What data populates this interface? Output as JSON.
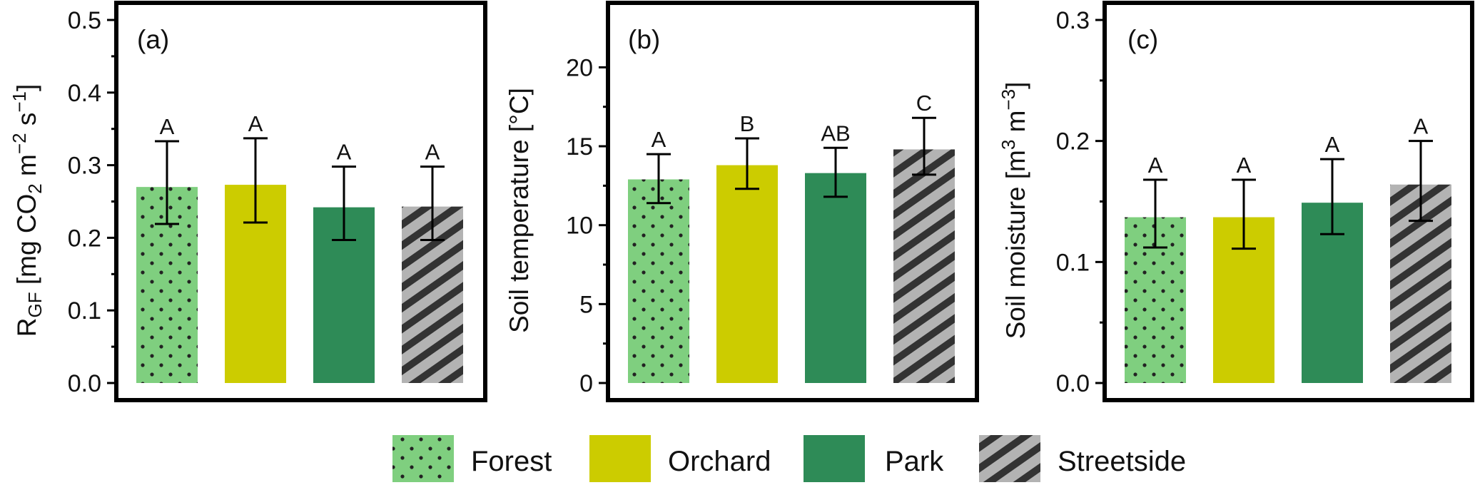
{
  "chart_data": [
    {
      "type": "bar",
      "panel_tag": "(a)",
      "ylabel": {
        "base": "R",
        "sub": "GF",
        "rest_a": " [mg CO",
        "sub2": "2",
        "rest_b": " m",
        "sup1": "−2",
        "rest_c": " s",
        "sup2": "−1",
        "rest_d": "]"
      },
      "ylim": [
        0,
        0.5
      ],
      "yticks": [
        "0.0",
        "0.1",
        "0.2",
        "0.3",
        "0.4",
        "0.5"
      ],
      "categories": [
        "Forest",
        "Orchard",
        "Park",
        "Streetside"
      ],
      "values": [
        0.27,
        0.273,
        0.242,
        0.243
      ],
      "err_low": [
        0.219,
        0.221,
        0.197,
        0.197
      ],
      "err_high": [
        0.333,
        0.337,
        0.298,
        0.298
      ],
      "letters": [
        "A",
        "A",
        "A",
        "A"
      ]
    },
    {
      "type": "bar",
      "panel_tag": "(b)",
      "ylabel": {
        "text": "Soil temperature [°C]"
      },
      "ylim": [
        0,
        23
      ],
      "yticks": [
        "0",
        "5",
        "10",
        "15",
        "20"
      ],
      "categories": [
        "Forest",
        "Orchard",
        "Park",
        "Streetside"
      ],
      "values": [
        12.9,
        13.8,
        13.3,
        14.8
      ],
      "err_low": [
        11.4,
        12.3,
        11.8,
        13.2
      ],
      "err_high": [
        14.5,
        15.5,
        14.9,
        16.8
      ],
      "letters": [
        "A",
        "B",
        "AB",
        "C"
      ]
    },
    {
      "type": "bar",
      "panel_tag": "(c)",
      "ylabel": {
        "base": "Soil moisture [m",
        "sup1": "3",
        "rest_a": " m",
        "sup2": "−3",
        "rest_b": "]"
      },
      "ylim": [
        0,
        0.3
      ],
      "yticks": [
        "0.0",
        "0.1",
        "0.2",
        "0.3"
      ],
      "categories": [
        "Forest",
        "Orchard",
        "Park",
        "Streetside"
      ],
      "values": [
        0.137,
        0.137,
        0.149,
        0.164
      ],
      "err_low": [
        0.112,
        0.111,
        0.123,
        0.134
      ],
      "err_high": [
        0.168,
        0.168,
        0.185,
        0.2
      ],
      "letters": [
        "A",
        "A",
        "A",
        "A"
      ]
    }
  ],
  "legend": {
    "placement": "bottom-center",
    "items": [
      {
        "label": "Forest",
        "color": "#7fcf7f",
        "pattern": "dots"
      },
      {
        "label": "Orchard",
        "color": "#cccc00",
        "pattern": "solid"
      },
      {
        "label": "Park",
        "color": "#2e8b57",
        "pattern": "solid"
      },
      {
        "label": "Streetside",
        "color": "#b3b3b3",
        "pattern": "stripes"
      }
    ]
  },
  "colors": {
    "forest": "#7fcf7f",
    "orchard": "#cccc00",
    "park": "#2e8b57",
    "streetside": "#b3b3b3",
    "dots": "#222222",
    "stripes": "#333333"
  }
}
